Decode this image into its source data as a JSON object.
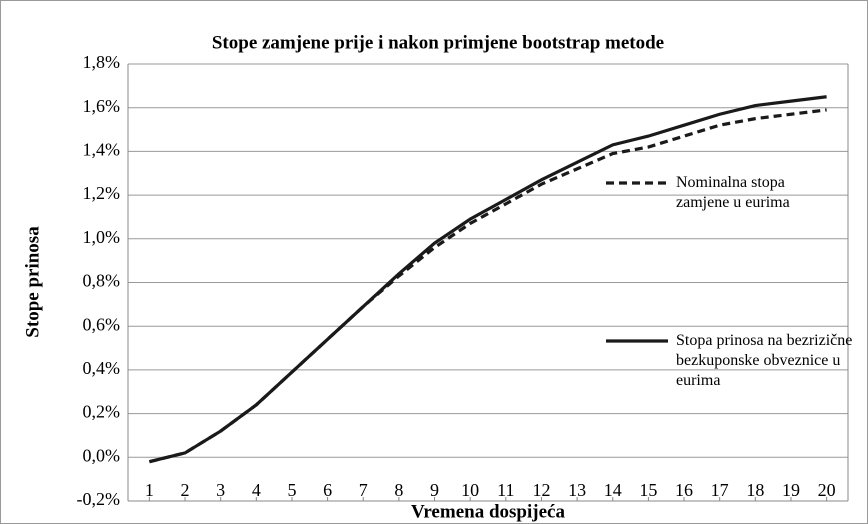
{
  "chart_data": {
    "type": "line",
    "title": "Stope zamjene prije i nakon primjene bootstrap metode",
    "x_label": "Vremena dospijeća",
    "y_label": "Stope prinosa",
    "x": [
      1,
      2,
      3,
      4,
      5,
      6,
      7,
      8,
      9,
      10,
      11,
      12,
      13,
      14,
      15,
      16,
      17,
      18,
      19,
      20
    ],
    "xlim": [
      0.4,
      20.6
    ],
    "xticks": [
      1,
      2,
      3,
      4,
      5,
      6,
      7,
      8,
      9,
      10,
      11,
      12,
      13,
      14,
      15,
      16,
      17,
      18,
      19,
      20
    ],
    "ylim": [
      -0.2,
      1.8
    ],
    "yticks": [
      {
        "value": -0.2,
        "label": "-0,2%"
      },
      {
        "value": 0,
        "label": "0,0%"
      },
      {
        "value": 0.2,
        "label": "0,2%"
      },
      {
        "value": 0.4,
        "label": "0,4%"
      },
      {
        "value": 0.6,
        "label": "0,6%"
      },
      {
        "value": 0.8,
        "label": "0,8%"
      },
      {
        "value": 1.0,
        "label": "1,0%"
      },
      {
        "value": 1.2,
        "label": "1,2%"
      },
      {
        "value": 1.4,
        "label": "1,4%"
      },
      {
        "value": 1.6,
        "label": "1,6%"
      },
      {
        "value": 1.8,
        "label": "1,8%"
      }
    ],
    "grid": true,
    "series": [
      {
        "name": "Nominalna stopa zamjene u eurima",
        "color": "#1a1a1a",
        "linestyle": "dashed",
        "values": [
          -0.02,
          0.02,
          0.12,
          0.24,
          0.39,
          0.54,
          0.69,
          0.83,
          0.96,
          1.07,
          1.16,
          1.25,
          1.32,
          1.39,
          1.42,
          1.47,
          1.52,
          1.55,
          1.57,
          1.59
        ]
      },
      {
        "name": "Stopa prinosa na bezrizične bezkuponske obveznice u eurima",
        "color": "#1a1a1a",
        "linestyle": "solid",
        "values": [
          -0.02,
          0.02,
          0.12,
          0.24,
          0.39,
          0.54,
          0.69,
          0.84,
          0.98,
          1.09,
          1.18,
          1.27,
          1.35,
          1.43,
          1.47,
          1.52,
          1.57,
          1.61,
          1.63,
          1.65
        ]
      }
    ]
  }
}
